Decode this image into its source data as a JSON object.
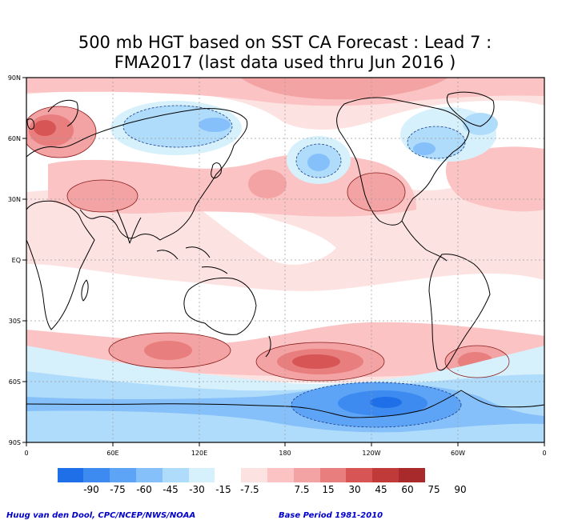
{
  "title": {
    "line1": "500 mb HGT based on SST CA Forecast : Lead 7 :",
    "line2": "FMA2017 (last data used thru Jun 2016 )"
  },
  "axes": {
    "lat_labels": [
      "90N",
      "60N",
      "30N",
      "EQ",
      "30S",
      "60S",
      "90S"
    ],
    "lon_labels": [
      "0",
      "60E",
      "120E",
      "180",
      "120W",
      "60W",
      "0"
    ]
  },
  "colorbar": {
    "labels": [
      "-90",
      "-75",
      "-60",
      "-45",
      "-30",
      "-15",
      "-7.5",
      "7.5",
      "15",
      "30",
      "45",
      "60",
      "75",
      "90"
    ],
    "colors": [
      "#1f6fe8",
      "#3d8bf0",
      "#5ea4f6",
      "#86c0fa",
      "#b0dcfb",
      "#d7f1fc",
      "#ffffff",
      "#fde2e2",
      "#fbc3c3",
      "#f3a3a3",
      "#e87e7e",
      "#d85555",
      "#c03a3a",
      "#a92a2a"
    ]
  },
  "footer": {
    "left": "Huug van den Dool, CPC/NCEP/NWS/NOAA",
    "right": "Base Period 1981-2010"
  }
}
